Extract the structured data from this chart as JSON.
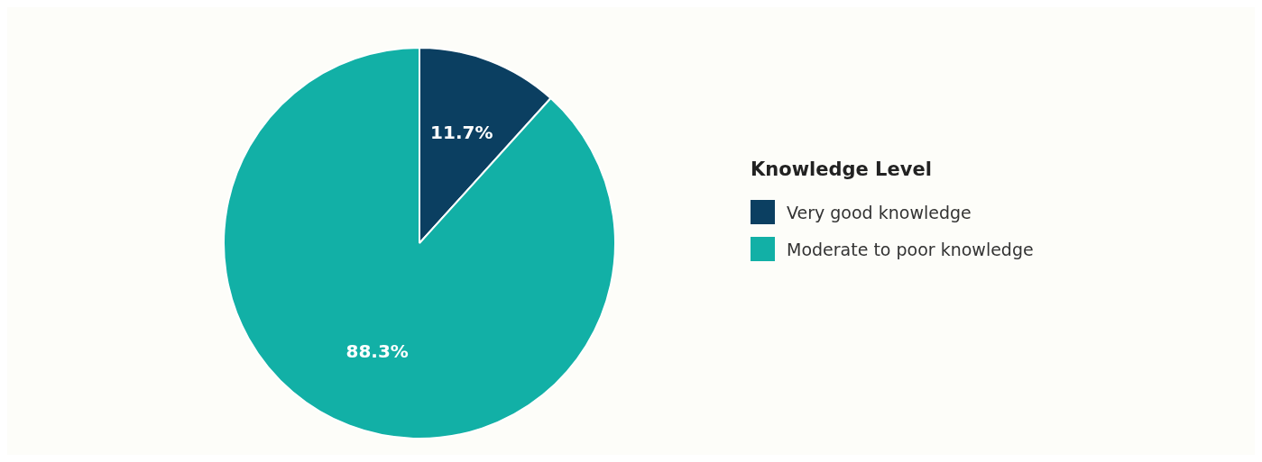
{
  "chart_data": {
    "type": "pie",
    "legend_title": "Knowledge Level",
    "legend": "right",
    "categories": [
      "Very good knowledge",
      "Moderate to poor knowledge"
    ],
    "values": [
      11.7,
      88.3
    ],
    "colors": [
      "#0b3f61",
      "#12b0a6"
    ],
    "value_labels": [
      "11.7%",
      "88.3%"
    ]
  }
}
